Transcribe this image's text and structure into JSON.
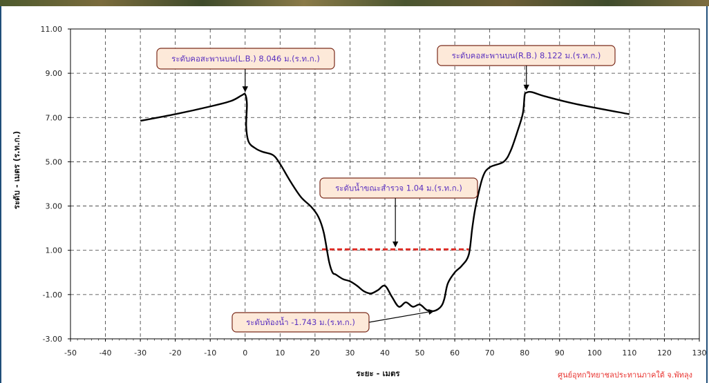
{
  "chart_data": {
    "type": "line",
    "title": "",
    "xlabel": "ระยะ - เมตร",
    "ylabel": "ระดับ - เมตร (ร.ท.ก.)",
    "xlim": [
      -50,
      130
    ],
    "ylim": [
      -3,
      11
    ],
    "x_ticks": [
      "-50",
      "-40",
      "-30",
      "-20",
      "-10",
      "0",
      "10",
      "20",
      "30",
      "40",
      "50",
      "60",
      "70",
      "80",
      "90",
      "100",
      "110",
      "120",
      "130"
    ],
    "y_ticks": [
      "11.00",
      "9.00",
      "7.00",
      "5.00",
      "3.00",
      "1.00",
      "-1.00",
      "-3.00"
    ],
    "grid": true,
    "series": [
      {
        "color": "#000000",
        "points": [
          [
            -30,
            6.85
          ],
          [
            -20,
            7.15
          ],
          [
            -10,
            7.5
          ],
          [
            -4,
            7.75
          ],
          [
            -1,
            8.0
          ],
          [
            0,
            8.046
          ],
          [
            0.5,
            7.6
          ],
          [
            0.3,
            6.6
          ],
          [
            1,
            5.9
          ],
          [
            3,
            5.6
          ],
          [
            5,
            5.45
          ],
          [
            8,
            5.3
          ],
          [
            10,
            4.9
          ],
          [
            13,
            4.1
          ],
          [
            16,
            3.4
          ],
          [
            19,
            2.95
          ],
          [
            21,
            2.5
          ],
          [
            22.5,
            1.8
          ],
          [
            24,
            0.5
          ],
          [
            25,
            0.0
          ],
          [
            26,
            -0.1
          ],
          [
            28,
            -0.3
          ],
          [
            30,
            -0.4
          ],
          [
            32,
            -0.6
          ],
          [
            34,
            -0.85
          ],
          [
            36,
            -0.95
          ],
          [
            38,
            -0.8
          ],
          [
            40,
            -0.6
          ],
          [
            42,
            -1.1
          ],
          [
            44,
            -1.55
          ],
          [
            46,
            -1.35
          ],
          [
            48,
            -1.55
          ],
          [
            50,
            -1.45
          ],
          [
            52,
            -1.7
          ],
          [
            54,
            -1.743
          ],
          [
            56,
            -1.55
          ],
          [
            57,
            -1.2
          ],
          [
            58,
            -0.5
          ],
          [
            60,
            0.0
          ],
          [
            62,
            0.3
          ],
          [
            64,
            0.8
          ],
          [
            65,
            2.0
          ],
          [
            66,
            3.0
          ],
          [
            68,
            4.3
          ],
          [
            70,
            4.75
          ],
          [
            74,
            5.0
          ],
          [
            76,
            5.5
          ],
          [
            78,
            6.4
          ],
          [
            79.5,
            7.2
          ],
          [
            80,
            8.0
          ],
          [
            80.5,
            8.122
          ],
          [
            82,
            8.15
          ],
          [
            86,
            7.95
          ],
          [
            95,
            7.6
          ],
          [
            110,
            7.15
          ]
        ]
      }
    ],
    "water_level": {
      "value": 1.04,
      "x_start": 22,
      "x_end": 64,
      "color": "#e0302a"
    },
    "annotations": [
      {
        "text": "ระดับคอสะพานบน(L.B.) 8.046 ม.(ร.ท.ก.)",
        "target": [
          0,
          8.046
        ]
      },
      {
        "text": "ระดับคอสะพานบน(R.B.) 8.122 ม.(ร.ท.ก.)",
        "target": [
          80.5,
          8.122
        ]
      },
      {
        "text": "ระดับน้ำขณะสำรวจ 1.04 ม.(ร.ท.ก.)",
        "target": [
          43,
          1.04
        ]
      },
      {
        "text": "ระดับท้องน้ำ -1.743 ม.(ร.ท.ก.)",
        "target": [
          54,
          -1.743
        ]
      }
    ]
  },
  "footer": {
    "credit": "ศูนย์อุทกวิทยาชลประทานภาคใต้ จ.พัทลุง"
  }
}
